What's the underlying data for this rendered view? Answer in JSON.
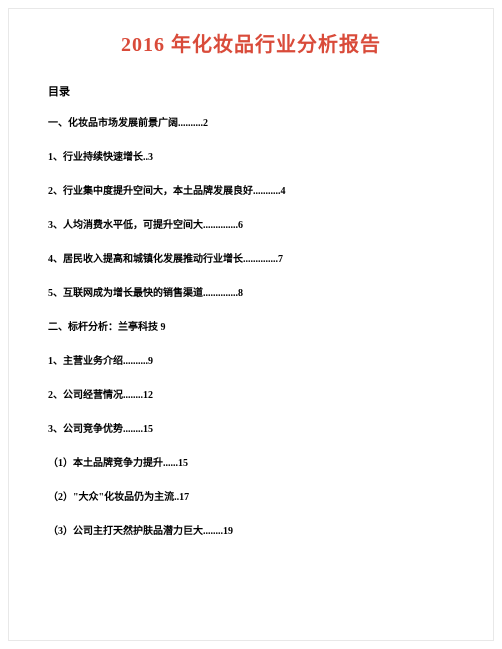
{
  "title": "2016 年化妆品行业分析报告",
  "tocHeader": "目录",
  "entries": [
    "一、化妆品市场发展前景广阔..........2",
    "1、行业持续快速增长..3",
    "2、行业集中度提升空间大，本土品牌发展良好...........4",
    "3、人均消费水平低，可提升空间大..............6",
    "4、居民收入提高和城镇化发展推动行业增长..............7",
    "5、互联网成为增长最快的销售渠道..............8",
    "二、标杆分析：兰亭科技 9",
    "1、主营业务介绍..........9",
    "2、公司经营情况........12",
    "3、公司竞争优势........15",
    "（1）本土品牌竞争力提升......15",
    "（2）\"大众\"化妆品仍为主流..17",
    "（3）公司主打天然护肤品潜力巨大........19"
  ],
  "colors": {
    "titleColor": "#d94b3a",
    "textColor": "#000000",
    "backgroundColor": "#ffffff"
  },
  "typography": {
    "titleFontSize": 20,
    "headerFontSize": 11,
    "entryFontSize": 10
  }
}
